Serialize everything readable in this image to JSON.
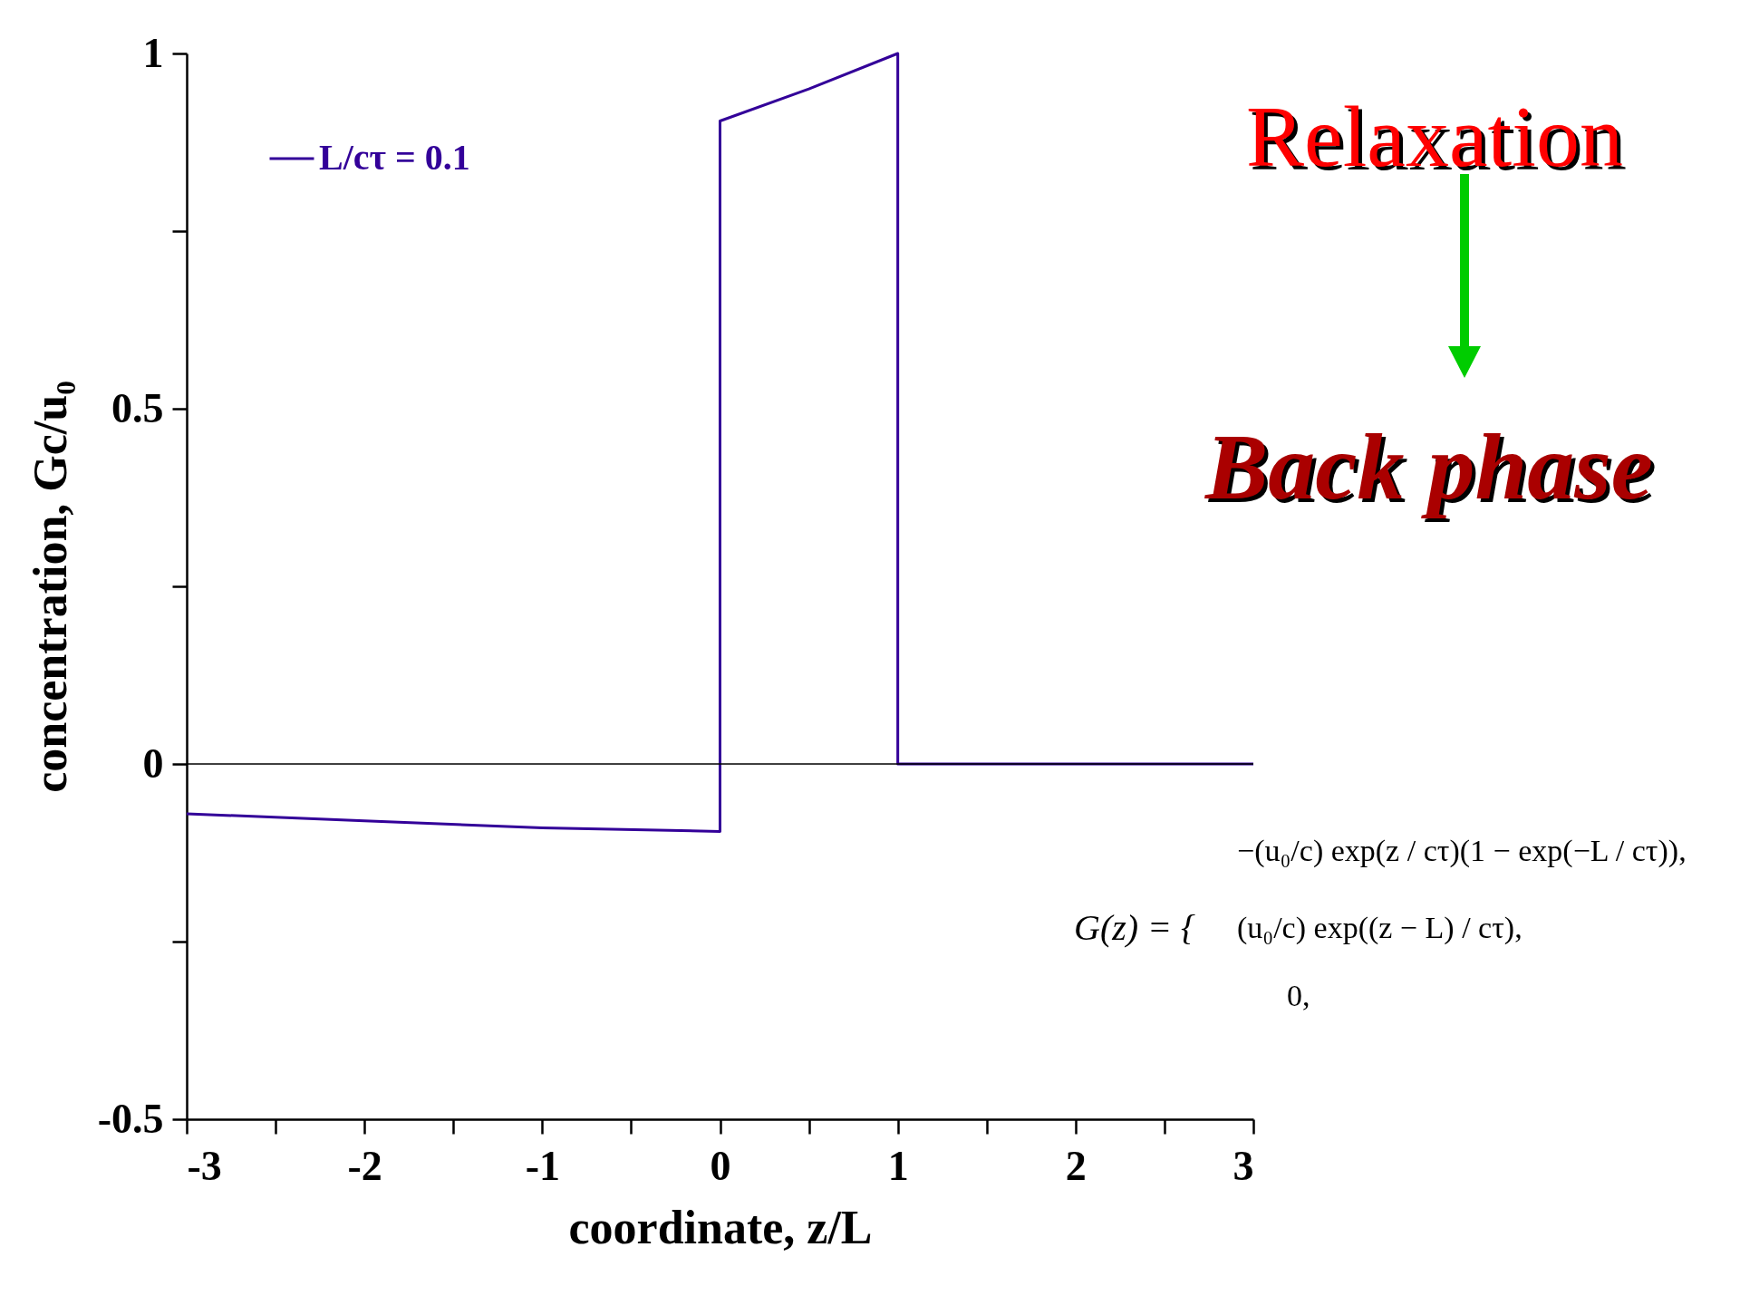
{
  "chart_data": {
    "type": "line",
    "xlabel": "coordinate, z/L",
    "ylabel": "concentration, Gc/u₀",
    "series": [
      {
        "name": "L/cτ = 0.1",
        "color": "#330099",
        "x": [
          -3,
          -2,
          -1,
          0,
          0,
          0.5,
          1,
          1,
          3
        ],
        "values": [
          -0.07,
          -0.08,
          -0.09,
          -0.095,
          0.905,
          0.95,
          1,
          0,
          0
        ]
      }
    ],
    "xlim": [
      -3,
      3
    ],
    "xticks": [
      -3,
      {
        "value": -2.5,
        "label": null
      },
      -2,
      {
        "value": -1.5,
        "label": null
      },
      -1,
      {
        "value": -0.5,
        "label": null
      },
      0,
      {
        "value": 0.5,
        "label": null
      },
      1,
      {
        "value": 1.5,
        "label": null
      },
      2,
      {
        "value": 2.5,
        "label": null
      },
      3
    ],
    "ylim": [
      -0.5,
      1
    ],
    "yticks": [
      -0.5,
      {
        "value": -0.25,
        "label": null
      },
      0,
      {
        "value": 0.25,
        "label": null
      },
      0.5,
      {
        "value": 0.75,
        "label": null
      },
      1
    ],
    "ref_lines": [
      {
        "axis": "y",
        "value": 0,
        "color": "#000000"
      }
    ],
    "legend": "top left",
    "grid": false,
    "line_style": "solid",
    "annotations": [
      "Relaxation",
      "Back phase",
      "G(z) = {",
      "−(u₀/c) exp(z / cτ)(1 − exp(−L / cτ)),",
      "(u₀/c) exp((z − L) / cτ),",
      "0,"
    ]
  }
}
